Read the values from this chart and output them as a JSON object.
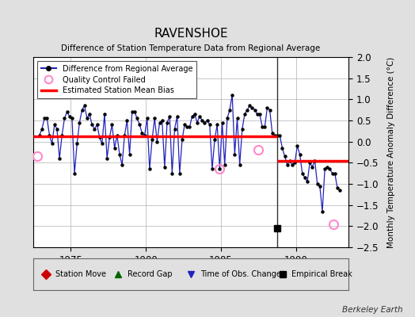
{
  "title": "RAVENSHOE",
  "subtitle": "Difference of Station Temperature Data from Regional Average",
  "ylabel": "Monthly Temperature Anomaly Difference (°C)",
  "xlabel_bottom": "Berkeley Earth",
  "xlim": [
    1972.5,
    1993.5
  ],
  "ylim": [
    -2.5,
    2.0
  ],
  "yticks": [
    -2.5,
    -2,
    -1.5,
    -1,
    -0.5,
    0,
    0.5,
    1,
    1.5,
    2
  ],
  "xticks": [
    1975,
    1980,
    1985,
    1990
  ],
  "background_color": "#e0e0e0",
  "plot_bg_color": "#ffffff",
  "grid_color": "#b0b0b0",
  "line_color": "#2222bb",
  "dot_color": "#000000",
  "bias_color": "#ff0000",
  "bias_value1": 0.13,
  "bias_value2": -0.45,
  "bias_x1_start": 1972.5,
  "bias_x1_end": 1988.75,
  "bias_x2_start": 1988.75,
  "bias_x2_end": 1993.5,
  "empirical_break_x": 1988.75,
  "empirical_break_y": -2.05,
  "qc_failed_points": [
    [
      1972.75,
      -0.35
    ],
    [
      1984.92,
      -0.65
    ],
    [
      1987.5,
      -0.2
    ],
    [
      1992.5,
      -1.95
    ]
  ],
  "monthly_data": [
    [
      1972.917,
      0.15
    ],
    [
      1973.083,
      0.3
    ],
    [
      1973.25,
      0.55
    ],
    [
      1973.417,
      0.55
    ],
    [
      1973.583,
      0.15
    ],
    [
      1973.75,
      -0.05
    ],
    [
      1973.917,
      0.4
    ],
    [
      1974.083,
      0.3
    ],
    [
      1974.25,
      -0.4
    ],
    [
      1974.417,
      0.15
    ],
    [
      1974.583,
      0.55
    ],
    [
      1974.75,
      0.7
    ],
    [
      1974.917,
      0.6
    ],
    [
      1975.083,
      0.55
    ],
    [
      1975.25,
      -0.75
    ],
    [
      1975.417,
      -0.05
    ],
    [
      1975.583,
      0.45
    ],
    [
      1975.75,
      0.75
    ],
    [
      1975.917,
      0.85
    ],
    [
      1976.083,
      0.55
    ],
    [
      1976.25,
      0.65
    ],
    [
      1976.417,
      0.4
    ],
    [
      1976.583,
      0.3
    ],
    [
      1976.75,
      0.4
    ],
    [
      1976.917,
      0.1
    ],
    [
      1977.083,
      -0.05
    ],
    [
      1977.25,
      0.65
    ],
    [
      1977.417,
      -0.4
    ],
    [
      1977.583,
      0.1
    ],
    [
      1977.75,
      0.4
    ],
    [
      1977.917,
      -0.15
    ],
    [
      1978.083,
      0.15
    ],
    [
      1978.25,
      -0.3
    ],
    [
      1978.417,
      -0.55
    ],
    [
      1978.583,
      0.15
    ],
    [
      1978.75,
      0.5
    ],
    [
      1978.917,
      -0.3
    ],
    [
      1979.083,
      0.7
    ],
    [
      1979.25,
      0.7
    ],
    [
      1979.417,
      0.55
    ],
    [
      1979.583,
      0.4
    ],
    [
      1979.75,
      0.2
    ],
    [
      1979.917,
      0.15
    ],
    [
      1980.083,
      0.55
    ],
    [
      1980.25,
      -0.65
    ],
    [
      1980.417,
      0.05
    ],
    [
      1980.583,
      0.55
    ],
    [
      1980.75,
      0.0
    ],
    [
      1980.917,
      0.45
    ],
    [
      1981.083,
      0.5
    ],
    [
      1981.25,
      -0.6
    ],
    [
      1981.417,
      0.45
    ],
    [
      1981.583,
      0.6
    ],
    [
      1981.75,
      -0.75
    ],
    [
      1981.917,
      0.3
    ],
    [
      1982.083,
      0.6
    ],
    [
      1982.25,
      -0.75
    ],
    [
      1982.417,
      0.05
    ],
    [
      1982.583,
      0.4
    ],
    [
      1982.75,
      0.35
    ],
    [
      1982.917,
      0.35
    ],
    [
      1983.083,
      0.6
    ],
    [
      1983.25,
      0.65
    ],
    [
      1983.417,
      0.45
    ],
    [
      1983.583,
      0.6
    ],
    [
      1983.75,
      0.5
    ],
    [
      1983.917,
      0.45
    ],
    [
      1984.083,
      0.5
    ],
    [
      1984.25,
      0.4
    ],
    [
      1984.417,
      -0.65
    ],
    [
      1984.583,
      0.05
    ],
    [
      1984.75,
      0.4
    ],
    [
      1984.917,
      -0.65
    ],
    [
      1985.083,
      0.45
    ],
    [
      1985.25,
      -0.55
    ],
    [
      1985.417,
      0.55
    ],
    [
      1985.583,
      0.75
    ],
    [
      1985.75,
      1.1
    ],
    [
      1985.917,
      -0.3
    ],
    [
      1986.083,
      0.55
    ],
    [
      1986.25,
      -0.55
    ],
    [
      1986.417,
      0.3
    ],
    [
      1986.583,
      0.65
    ],
    [
      1986.75,
      0.75
    ],
    [
      1986.917,
      0.85
    ],
    [
      1987.083,
      0.8
    ],
    [
      1987.25,
      0.75
    ],
    [
      1987.417,
      0.65
    ],
    [
      1987.583,
      0.65
    ],
    [
      1987.75,
      0.35
    ],
    [
      1987.917,
      0.35
    ],
    [
      1988.083,
      0.8
    ],
    [
      1988.25,
      0.75
    ],
    [
      1988.417,
      0.2
    ],
    [
      1988.583,
      0.15
    ],
    [
      1988.75,
      0.15
    ],
    [
      1988.917,
      0.15
    ],
    [
      1989.083,
      -0.15
    ],
    [
      1989.25,
      -0.35
    ],
    [
      1989.417,
      -0.55
    ],
    [
      1989.583,
      -0.45
    ],
    [
      1989.75,
      -0.55
    ],
    [
      1989.917,
      -0.5
    ],
    [
      1990.083,
      -0.1
    ],
    [
      1990.25,
      -0.3
    ],
    [
      1990.417,
      -0.75
    ],
    [
      1990.583,
      -0.85
    ],
    [
      1990.75,
      -0.95
    ],
    [
      1990.917,
      -0.5
    ],
    [
      1991.083,
      -0.6
    ],
    [
      1991.25,
      -0.45
    ],
    [
      1991.417,
      -1.0
    ],
    [
      1991.583,
      -1.05
    ],
    [
      1991.75,
      -1.65
    ],
    [
      1991.917,
      -0.65
    ],
    [
      1992.083,
      -0.6
    ],
    [
      1992.25,
      -0.65
    ],
    [
      1992.417,
      -0.75
    ],
    [
      1992.583,
      -0.75
    ],
    [
      1992.75,
      -1.1
    ],
    [
      1992.917,
      -1.15
    ]
  ]
}
